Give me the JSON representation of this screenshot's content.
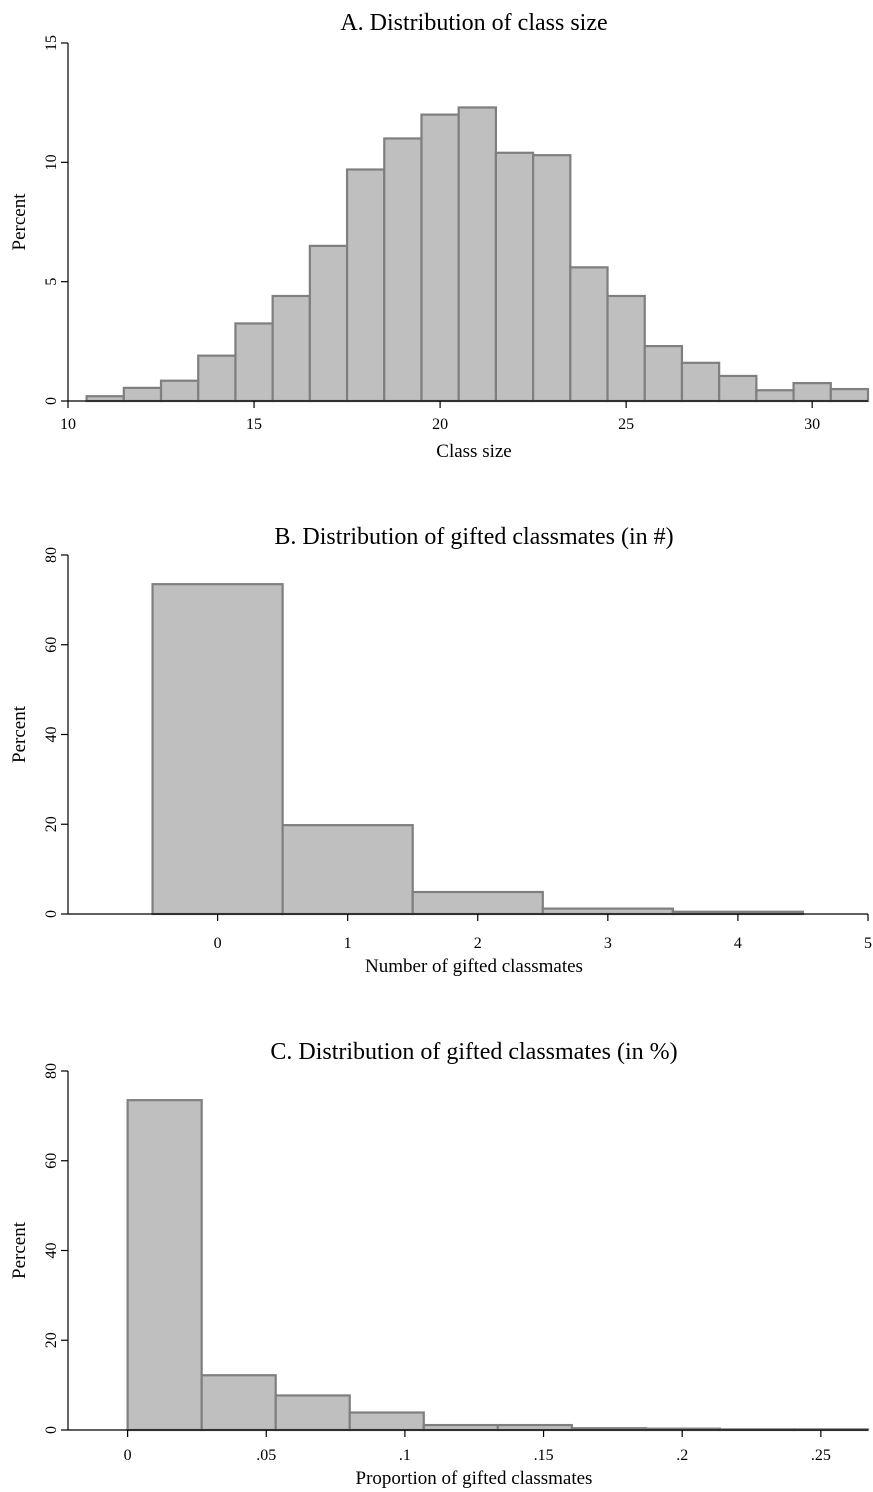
{
  "chart_data": [
    {
      "type": "bar",
      "title": "A. Distribution of class size",
      "xlabel": "Class size",
      "ylabel": "Percent",
      "xlim": [
        10,
        31.5
      ],
      "ylim": [
        0,
        15
      ],
      "x_ticks": [
        10,
        15,
        20,
        25,
        30
      ],
      "x_tick_labels": [
        "10",
        "15",
        "20",
        "25",
        "30"
      ],
      "y_ticks": [
        0,
        5,
        10,
        15
      ],
      "y_tick_labels": [
        "0",
        "5",
        "10",
        "15"
      ],
      "bin_width": 1,
      "bins": [
        {
          "start": 10.5,
          "value": 0.2
        },
        {
          "start": 11.5,
          "value": 0.55
        },
        {
          "start": 12.5,
          "value": 0.85
        },
        {
          "start": 13.5,
          "value": 1.9
        },
        {
          "start": 14.5,
          "value": 3.25
        },
        {
          "start": 15.5,
          "value": 4.4
        },
        {
          "start": 16.5,
          "value": 6.5
        },
        {
          "start": 17.5,
          "value": 9.7
        },
        {
          "start": 18.5,
          "value": 11.0
        },
        {
          "start": 19.5,
          "value": 12.0
        },
        {
          "start": 20.5,
          "value": 12.3
        },
        {
          "start": 21.5,
          "value": 10.4
        },
        {
          "start": 22.5,
          "value": 10.3
        },
        {
          "start": 23.5,
          "value": 5.6
        },
        {
          "start": 24.5,
          "value": 4.4
        },
        {
          "start": 25.5,
          "value": 2.3
        },
        {
          "start": 26.5,
          "value": 1.6
        },
        {
          "start": 27.5,
          "value": 1.05
        },
        {
          "start": 28.5,
          "value": 0.45
        },
        {
          "start": 29.5,
          "value": 0.75
        },
        {
          "start": 30.5,
          "value": 0.5
        }
      ],
      "grid": false,
      "legend": "none"
    },
    {
      "type": "bar",
      "title": "B. Distribution of gifted classmates (in #)",
      "xlabel": "Number of gifted classmates",
      "ylabel": "Percent",
      "xlim": [
        -1.15,
        5
      ],
      "ylim": [
        0,
        80
      ],
      "x_ticks": [
        0,
        1,
        2,
        3,
        4,
        5
      ],
      "x_tick_labels": [
        "0",
        "1",
        "2",
        "3",
        "4",
        "5"
      ],
      "y_ticks": [
        0,
        20,
        40,
        60,
        80
      ],
      "y_tick_labels": [
        "0",
        "20",
        "40",
        "60",
        "80"
      ],
      "bin_width": 1,
      "bins": [
        {
          "start": -0.5,
          "value": 73.5
        },
        {
          "start": 0.5,
          "value": 19.8
        },
        {
          "start": 1.5,
          "value": 4.9
        },
        {
          "start": 2.5,
          "value": 1.2
        },
        {
          "start": 3.5,
          "value": 0.5
        }
      ],
      "grid": false,
      "legend": "none"
    },
    {
      "type": "bar",
      "title": "C. Distribution of gifted classmates (in %)",
      "xlabel": "Proportion of gifted classmates",
      "ylabel": "Percent",
      "xlim": [
        -0.0215,
        0.267
      ],
      "ylim": [
        0,
        80
      ],
      "x_ticks": [
        0,
        0.05,
        0.1,
        0.15,
        0.2,
        0.25
      ],
      "x_tick_labels": [
        "0",
        ".05",
        ".1",
        ".15",
        ".2",
        ".25"
      ],
      "y_ticks": [
        0,
        20,
        40,
        60,
        80
      ],
      "y_tick_labels": [
        "0",
        "20",
        "40",
        "60",
        "80"
      ],
      "bin_width": 0.0267,
      "bins": [
        {
          "start": 0.0,
          "value": 73.5
        },
        {
          "start": 0.0267,
          "value": 12.2
        },
        {
          "start": 0.0534,
          "value": 7.7
        },
        {
          "start": 0.0801,
          "value": 3.9
        },
        {
          "start": 0.1068,
          "value": 1.1
        },
        {
          "start": 0.1335,
          "value": 1.1
        },
        {
          "start": 0.1602,
          "value": 0.4
        },
        {
          "start": 0.1869,
          "value": 0.3
        },
        {
          "start": 0.2136,
          "value": 0.15
        },
        {
          "start": 0.2403,
          "value": 0.15
        }
      ],
      "grid": false,
      "legend": "none"
    }
  ]
}
